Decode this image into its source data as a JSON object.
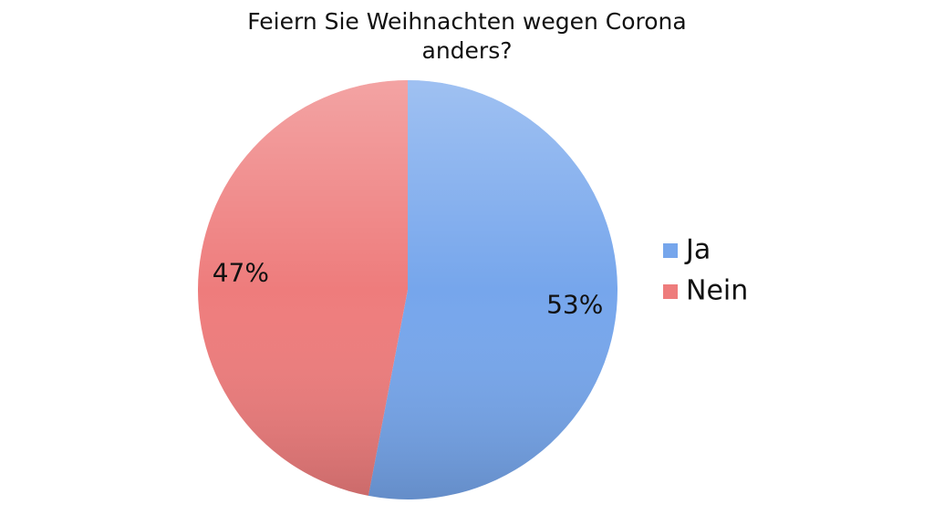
{
  "chart_data": {
    "type": "pie",
    "title": "Feiern Sie Weihnachten wegen Corona anders?",
    "categories": [
      "Ja",
      "Nein"
    ],
    "values": [
      53,
      47
    ],
    "value_labels": [
      "53%",
      "47%"
    ],
    "colors": [
      "#76a6ec",
      "#ee7c7c"
    ],
    "legend": "right"
  }
}
